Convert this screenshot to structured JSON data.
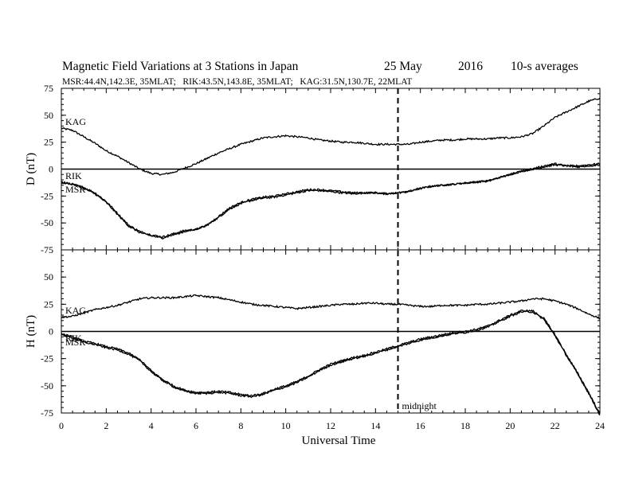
{
  "chart_data": {
    "type": "line",
    "title": "Magnetic Field Variations at 3 Stations in Japan",
    "date": "25 May",
    "year": "2016",
    "averaging": "10-s averages",
    "subtitle": "MSR:44.4N,142.3E, 35MLAT;   RIK:43.5N,143.8E, 35MLAT;   KAG:31.5N,130.7E, 22MLAT",
    "xlabel": "Universal Time",
    "xlim": [
      0,
      24
    ],
    "xticks": [
      "0",
      "2",
      "4",
      "6",
      "8",
      "10",
      "12",
      "14",
      "16",
      "18",
      "20",
      "22",
      "24"
    ],
    "midnight_ut": 15,
    "midnight_label": "midnight",
    "panels": [
      {
        "id": "D",
        "ylabel": "D (nT)",
        "ylim": [
          -75,
          75
        ],
        "yticks": [
          "75",
          "50",
          "25",
          "0",
          "-25",
          "-50",
          "-75"
        ],
        "series": [
          {
            "name": "KAG",
            "x": [
              0,
              0.5,
              1,
              1.5,
              2,
              2.5,
              3,
              3.5,
              4,
              4.5,
              5,
              5.5,
              6,
              6.5,
              7,
              7.5,
              8,
              8.5,
              9,
              9.5,
              10,
              10.5,
              11,
              11.5,
              12,
              12.5,
              13,
              13.5,
              14,
              14.5,
              15,
              15.5,
              16,
              16.5,
              17,
              17.5,
              18,
              18.5,
              19,
              19.5,
              20,
              20.5,
              21,
              21.5,
              22,
              22.5,
              23,
              23.5,
              24
            ],
            "values": [
              38,
              36,
              30,
              24,
              17,
              12,
              6,
              0,
              -4,
              -5,
              -3,
              1,
              5,
              10,
              15,
              19,
              23,
              26,
              29,
              30,
              31,
              30,
              29,
              27,
              26,
              25,
              25,
              24,
              23,
              23,
              23,
              23,
              25,
              26,
              27,
              27,
              28,
              28,
              28,
              29,
              29,
              30,
              33,
              40,
              48,
              53,
              58,
              63,
              66
            ]
          },
          {
            "name": "RIK",
            "x": [
              0,
              0.5,
              1,
              1.5,
              2,
              2.5,
              3,
              3.5,
              4,
              4.5,
              5,
              5.5,
              6,
              6.5,
              7,
              7.5,
              8,
              8.5,
              9,
              9.5,
              10,
              10.5,
              11,
              11.5,
              12,
              12.5,
              13,
              13.5,
              14,
              14.5,
              15,
              15.5,
              16,
              16.5,
              17,
              17.5,
              18,
              18.5,
              19,
              19.5,
              20,
              20.5,
              21,
              21.5,
              22,
              22.5,
              23,
              23.5,
              24
            ],
            "values": [
              -13,
              -14,
              -17,
              -22,
              -30,
              -41,
              -52,
              -58,
              -61,
              -63,
              -60,
              -57,
              -56,
              -52,
              -45,
              -37,
              -32,
              -29,
              -27,
              -26,
              -24,
              -22,
              -20,
              -20,
              -21,
              -22,
              -23,
              -22,
              -22,
              -23,
              -22,
              -21,
              -18,
              -16,
              -15,
              -14,
              -13,
              -12,
              -11,
              -8,
              -5,
              -2,
              0,
              2,
              4,
              3,
              3,
              4,
              5
            ]
          },
          {
            "name": "MSR",
            "x": [
              0,
              0.5,
              1,
              1.5,
              2,
              2.5,
              3,
              3.5,
              4,
              4.5,
              5,
              5.5,
              6,
              6.5,
              7,
              7.5,
              8,
              8.5,
              9,
              9.5,
              10,
              10.5,
              11,
              11.5,
              12,
              12.5,
              13,
              13.5,
              14,
              14.5,
              15,
              15.5,
              16,
              16.5,
              17,
              17.5,
              18,
              18.5,
              19,
              19.5,
              20,
              20.5,
              21,
              21.5,
              22,
              22.5,
              23,
              23.5,
              24
            ],
            "values": [
              -12,
              -14,
              -18,
              -23,
              -31,
              -42,
              -53,
              -59,
              -62,
              -64,
              -61,
              -58,
              -56,
              -52,
              -44,
              -36,
              -31,
              -28,
              -26,
              -25,
              -23,
              -21,
              -19,
              -19,
              -20,
              -21,
              -22,
              -22,
              -22,
              -23,
              -22,
              -20,
              -18,
              -16,
              -15,
              -14,
              -13,
              -12,
              -11,
              -8,
              -5,
              -2,
              0,
              3,
              5,
              3,
              2,
              3,
              4
            ]
          }
        ]
      },
      {
        "id": "H",
        "ylabel": "H (nT)",
        "ylim": [
          -75,
          75
        ],
        "yticks": [
          "75",
          "50",
          "25",
          "0",
          "-25",
          "-50",
          "-75"
        ],
        "series": [
          {
            "name": "KAG",
            "x": [
              0,
              0.5,
              1,
              1.5,
              2,
              2.5,
              3,
              3.5,
              4,
              4.5,
              5,
              5.5,
              6,
              6.5,
              7,
              7.5,
              8,
              8.5,
              9,
              9.5,
              10,
              10.5,
              11,
              11.5,
              12,
              12.5,
              13,
              13.5,
              14,
              14.5,
              15,
              15.5,
              16,
              16.5,
              17,
              17.5,
              18,
              18.5,
              19,
              19.5,
              20,
              20.5,
              21,
              21.5,
              22,
              22.5,
              23,
              23.5,
              24
            ],
            "values": [
              13,
              14,
              17,
              20,
              22,
              24,
              27,
              30,
              31,
              31,
              31,
              32,
              33,
              32,
              31,
              29,
              27,
              25,
              24,
              23,
              22,
              21,
              22,
              23,
              24,
              25,
              25,
              26,
              26,
              25,
              25,
              24,
              23,
              23,
              24,
              24,
              24,
              25,
              25,
              26,
              27,
              28,
              30,
              30,
              28,
              25,
              21,
              16,
              12
            ]
          },
          {
            "name": "RIK",
            "x": [
              0,
              0.5,
              1,
              1.5,
              2,
              2.5,
              3,
              3.5,
              4,
              4.5,
              5,
              5.5,
              6,
              6.5,
              7,
              7.5,
              8,
              8.5,
              9,
              9.5,
              10,
              10.5,
              11,
              11.5,
              12,
              12.5,
              13,
              13.5,
              14,
              14.5,
              15,
              15.5,
              16,
              16.5,
              17,
              17.5,
              18,
              18.5,
              19,
              19.5,
              20,
              20.5,
              21,
              21.5,
              22,
              22.5,
              23,
              23.5,
              24
            ],
            "values": [
              -2,
              -5,
              -9,
              -11,
              -14,
              -16,
              -20,
              -26,
              -36,
              -44,
              -50,
              -54,
              -56,
              -56,
              -55,
              -56,
              -58,
              -59,
              -57,
              -53,
              -50,
              -46,
              -41,
              -35,
              -30,
              -27,
              -24,
              -22,
              -19,
              -16,
              -13,
              -10,
              -7,
              -5,
              -3,
              -1,
              0,
              2,
              5,
              10,
              15,
              19,
              19,
              12,
              -3,
              -21,
              -38,
              -56,
              -76
            ]
          },
          {
            "name": "MSR",
            "x": [
              0,
              0.5,
              1,
              1.5,
              2,
              2.5,
              3,
              3.5,
              4,
              4.5,
              5,
              5.5,
              6,
              6.5,
              7,
              7.5,
              8,
              8.5,
              9,
              9.5,
              10,
              10.5,
              11,
              11.5,
              12,
              12.5,
              13,
              13.5,
              14,
              14.5,
              15,
              15.5,
              16,
              16.5,
              17,
              17.5,
              18,
              18.5,
              19,
              19.5,
              20,
              20.5,
              21,
              21.5,
              22,
              22.5,
              23,
              23.5,
              24
            ],
            "values": [
              -3,
              -6,
              -10,
              -12,
              -15,
              -17,
              -21,
              -27,
              -37,
              -45,
              -51,
              -55,
              -57,
              -57,
              -56,
              -57,
              -59,
              -60,
              -58,
              -54,
              -51,
              -47,
              -42,
              -36,
              -31,
              -28,
              -25,
              -23,
              -20,
              -17,
              -14,
              -11,
              -8,
              -6,
              -4,
              -2,
              -1,
              1,
              4,
              9,
              14,
              18,
              18,
              11,
              -4,
              -22,
              -39,
              -57,
              -77
            ]
          }
        ]
      }
    ]
  }
}
